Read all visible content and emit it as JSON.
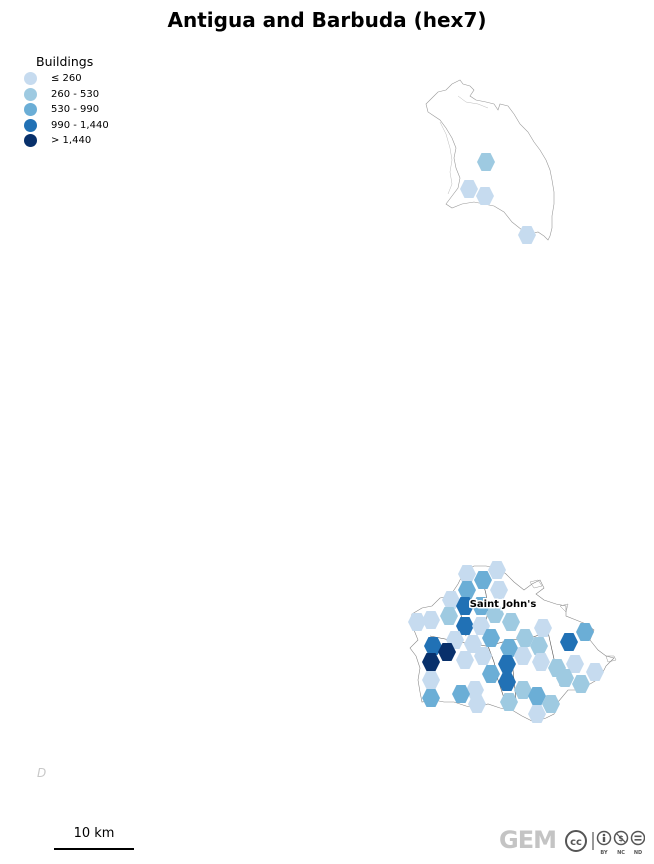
{
  "title": "Antigua and Barbuda (hex7)",
  "legend": {
    "title": "Buildings",
    "items": [
      {
        "label": "≤ 260",
        "color": "#c6dbef"
      },
      {
        "label": "260 - 530",
        "color": "#9ecae1"
      },
      {
        "label": "530 - 990",
        "color": "#6baed6"
      },
      {
        "label": "990 - 1,440",
        "color": "#2171b5"
      },
      {
        "label": "> 1,440",
        "color": "#08306b"
      }
    ]
  },
  "places": [
    {
      "name": "Saint John's"
    }
  ],
  "watermark": "D",
  "scale": {
    "label": "10 km"
  },
  "logos": {
    "gem": "GEM",
    "license_icons": [
      "cc-icon",
      "by-icon",
      "nc-icon",
      "nd-icon"
    ]
  }
}
